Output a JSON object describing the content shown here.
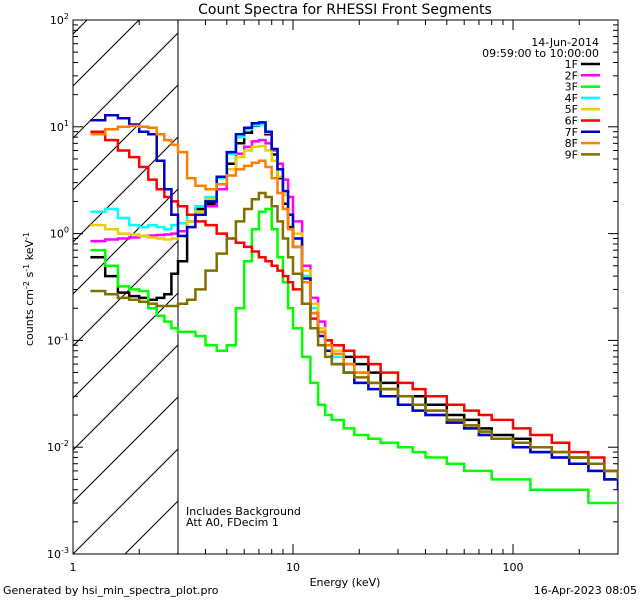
{
  "chart_data": {
    "type": "line",
    "title": "Count Spectra for RHESSI Front Segments",
    "xlabel": "Energy (keV)",
    "ylabel": "counts cm",
    "ylabel_parts": {
      "base": "counts cm",
      "sup1": "-2",
      "mid1": " s",
      "sup2": "-1",
      "mid2": " keV",
      "sup3": "-1"
    },
    "xscale": "log",
    "yscale": "log",
    "xlim": [
      1,
      300
    ],
    "ylim": [
      0.001,
      100
    ],
    "x_tick_labels": [
      "1",
      "10",
      "100"
    ],
    "y_tick_labels": [
      {
        "base": "10",
        "exp": "-3"
      },
      {
        "base": "10",
        "exp": "-2"
      },
      {
        "base": "10",
        "exp": "-1"
      },
      {
        "base": "10",
        "exp": "0"
      },
      {
        "base": "10",
        "exp": "1"
      },
      {
        "base": "10",
        "exp": "2"
      }
    ],
    "date": "14-Jun-2014",
    "time_range": "09:59:00 to 10:00:00",
    "notes": [
      "Includes Background",
      "Att A0, FDecim 1"
    ],
    "attenuated_region_kev": [
      1,
      3
    ],
    "footer_left": "Generated by hsi_min_spectra_plot.pro",
    "footer_right": "16-Apr-2023 08:05",
    "legend_position": "top-right",
    "series": [
      {
        "name": "1F",
        "color": "#000000",
        "x": [
          1.2,
          1.4,
          1.6,
          1.8,
          2.0,
          2.2,
          2.4,
          2.6,
          2.8,
          3.0,
          3.3,
          3.6,
          4.0,
          4.5,
          5.0,
          5.5,
          6.0,
          6.5,
          7.0,
          7.5,
          8.0,
          8.5,
          9.0,
          9.5,
          10,
          11,
          12,
          13,
          14,
          15,
          17,
          19,
          22,
          25,
          30,
          35,
          40,
          50,
          60,
          70,
          80,
          100,
          120,
          150,
          180,
          220,
          260,
          300
        ],
        "y": [
          0.6,
          0.4,
          0.28,
          0.26,
          0.25,
          0.24,
          0.25,
          0.27,
          0.42,
          0.55,
          1.3,
          1.7,
          1.9,
          2.6,
          4.5,
          7.0,
          8.8,
          10.2,
          10.8,
          8.5,
          5.5,
          3.3,
          1.9,
          1.15,
          0.75,
          0.4,
          0.2,
          0.12,
          0.09,
          0.08,
          0.07,
          0.06,
          0.05,
          0.04,
          0.03,
          0.03,
          0.025,
          0.02,
          0.018,
          0.015,
          0.013,
          0.012,
          0.01,
          0.009,
          0.008,
          0.007,
          0.006,
          0.005
        ]
      },
      {
        "name": "2F",
        "color": "#ff00ff",
        "x": [
          1.2,
          1.4,
          1.6,
          1.8,
          2.0,
          2.2,
          2.4,
          2.6,
          2.8,
          3.0,
          3.3,
          3.6,
          4.0,
          4.5,
          5.0,
          5.5,
          6.0,
          6.5,
          7.0,
          7.5,
          8.0,
          8.5,
          9.0,
          9.5,
          10,
          11,
          12,
          13,
          14,
          15,
          17,
          19,
          22,
          25,
          30,
          35,
          40,
          50,
          60,
          70,
          80,
          100,
          120,
          150,
          180,
          220,
          260,
          300
        ],
        "y": [
          0.85,
          0.88,
          0.9,
          0.92,
          0.95,
          0.96,
          0.97,
          0.98,
          1.0,
          1.05,
          1.3,
          1.5,
          1.8,
          2.6,
          4.0,
          5.6,
          6.5,
          7.3,
          7.5,
          7.0,
          6.0,
          4.5,
          3.2,
          2.2,
          1.3,
          0.5,
          0.25,
          0.15,
          0.1,
          0.08,
          0.06,
          0.05,
          0.04,
          0.035,
          0.03,
          0.025,
          0.02,
          0.018,
          0.015,
          0.013,
          0.012,
          0.01,
          0.009,
          0.008,
          0.007,
          0.006,
          0.005,
          0.005
        ]
      },
      {
        "name": "3F",
        "color": "#00ff00",
        "x": [
          1.2,
          1.4,
          1.6,
          1.8,
          2.0,
          2.2,
          2.4,
          2.6,
          2.8,
          3.0,
          3.3,
          3.6,
          4.0,
          4.5,
          5.0,
          5.5,
          6.0,
          6.5,
          7.0,
          7.5,
          8.0,
          8.5,
          9.0,
          9.5,
          10,
          11,
          12,
          13,
          14,
          15,
          17,
          19,
          22,
          25,
          30,
          35,
          40,
          50,
          60,
          70,
          80,
          100,
          120,
          150,
          180,
          220,
          260,
          300
        ],
        "y": [
          0.7,
          0.5,
          0.32,
          0.3,
          0.29,
          0.2,
          0.17,
          0.15,
          0.13,
          0.12,
          0.12,
          0.11,
          0.09,
          0.08,
          0.09,
          0.2,
          0.55,
          1.1,
          1.6,
          1.7,
          1.1,
          0.6,
          0.35,
          0.2,
          0.13,
          0.07,
          0.04,
          0.025,
          0.02,
          0.018,
          0.015,
          0.013,
          0.012,
          0.011,
          0.01,
          0.009,
          0.008,
          0.007,
          0.006,
          0.006,
          0.005,
          0.005,
          0.004,
          0.004,
          0.004,
          0.003,
          0.003,
          0.003
        ]
      },
      {
        "name": "4F",
        "color": "#00ffff",
        "x": [
          1.2,
          1.4,
          1.6,
          1.8,
          2.0,
          2.2,
          2.4,
          2.6,
          2.8,
          3.0,
          3.3,
          3.6,
          4.0,
          4.5,
          5.0,
          5.5,
          6.0,
          6.5,
          7.0,
          7.5,
          8.0,
          8.5,
          9.0,
          9.5,
          10,
          11,
          12,
          13,
          14,
          15,
          17,
          19,
          22,
          25,
          30,
          35,
          40,
          50,
          60,
          70,
          80,
          100,
          120,
          150,
          180,
          220,
          260,
          300
        ],
        "y": [
          1.6,
          1.7,
          1.4,
          1.2,
          1.15,
          1.2,
          1.15,
          1.1,
          1.2,
          1.25,
          1.5,
          1.8,
          2.2,
          3.3,
          5.6,
          8.0,
          9.5,
          10.3,
          10.5,
          8.8,
          6.2,
          4.0,
          2.5,
          1.5,
          0.9,
          0.4,
          0.2,
          0.12,
          0.09,
          0.07,
          0.05,
          0.04,
          0.035,
          0.03,
          0.025,
          0.022,
          0.02,
          0.017,
          0.015,
          0.013,
          0.012,
          0.01,
          0.009,
          0.008,
          0.007,
          0.006,
          0.005,
          0.005
        ]
      },
      {
        "name": "5F",
        "color": "#e6d200",
        "x": [
          1.2,
          1.4,
          1.6,
          1.8,
          2.0,
          2.2,
          2.4,
          2.6,
          2.8,
          3.0,
          3.3,
          3.6,
          4.0,
          4.5,
          5.0,
          5.5,
          6.0,
          6.5,
          7.0,
          7.5,
          8.0,
          8.5,
          9.0,
          9.5,
          10,
          11,
          12,
          13,
          14,
          15,
          17,
          19,
          22,
          25,
          30,
          35,
          40,
          50,
          60,
          70,
          80,
          100,
          120,
          150,
          180,
          220,
          260,
          300
        ],
        "y": [
          1.2,
          1.1,
          1.0,
          0.98,
          0.95,
          0.92,
          0.9,
          0.88,
          0.9,
          0.95,
          1.3,
          1.6,
          2.1,
          2.9,
          4.0,
          5.2,
          6.0,
          6.5,
          6.6,
          6.0,
          4.8,
          3.4,
          2.3,
          1.5,
          1.0,
          0.45,
          0.22,
          0.13,
          0.1,
          0.08,
          0.06,
          0.05,
          0.04,
          0.035,
          0.03,
          0.025,
          0.022,
          0.018,
          0.016,
          0.014,
          0.012,
          0.011,
          0.01,
          0.009,
          0.008,
          0.007,
          0.006,
          0.005
        ]
      },
      {
        "name": "6F",
        "color": "#ff0000",
        "x": [
          1.2,
          1.4,
          1.6,
          1.8,
          2.0,
          2.2,
          2.4,
          2.6,
          2.8,
          3.0,
          3.3,
          3.6,
          4.0,
          4.5,
          5.0,
          5.5,
          6.0,
          6.5,
          7.0,
          7.5,
          8.0,
          8.5,
          9.0,
          9.5,
          10,
          11,
          12,
          13,
          14,
          15,
          17,
          19,
          22,
          25,
          30,
          35,
          40,
          50,
          60,
          70,
          80,
          100,
          120,
          150,
          180,
          220,
          260,
          300
        ],
        "y": [
          9.0,
          7.5,
          6.0,
          5.2,
          4.2,
          3.2,
          2.6,
          2.2,
          2.0,
          1.8,
          1.5,
          1.3,
          1.2,
          1.0,
          0.9,
          0.82,
          0.75,
          0.68,
          0.6,
          0.55,
          0.5,
          0.45,
          0.4,
          0.35,
          0.3,
          0.22,
          0.16,
          0.12,
          0.1,
          0.09,
          0.08,
          0.07,
          0.06,
          0.05,
          0.04,
          0.035,
          0.03,
          0.025,
          0.022,
          0.02,
          0.018,
          0.015,
          0.013,
          0.011,
          0.009,
          0.008,
          0.006,
          0.005
        ]
      },
      {
        "name": "7F",
        "color": "#0000cc",
        "x": [
          1.2,
          1.4,
          1.6,
          1.8,
          2.0,
          2.2,
          2.4,
          2.6,
          2.8,
          3.0,
          3.3,
          3.6,
          4.0,
          4.5,
          5.0,
          5.5,
          6.0,
          6.5,
          7.0,
          7.5,
          8.0,
          8.5,
          9.0,
          9.5,
          10,
          11,
          12,
          13,
          14,
          15,
          17,
          19,
          22,
          25,
          30,
          35,
          40,
          50,
          60,
          70,
          80,
          100,
          120,
          150,
          180,
          220,
          260,
          300
        ],
        "y": [
          11.5,
          12.8,
          12.0,
          10.5,
          9.0,
          8.5,
          4.8,
          2.6,
          1.5,
          0.95,
          1.15,
          1.5,
          2.0,
          3.4,
          5.8,
          8.5,
          9.8,
          10.8,
          11.0,
          9.0,
          6.2,
          4.0,
          2.5,
          1.5,
          0.9,
          0.38,
          0.18,
          0.11,
          0.08,
          0.06,
          0.05,
          0.04,
          0.035,
          0.03,
          0.025,
          0.022,
          0.02,
          0.017,
          0.015,
          0.013,
          0.012,
          0.01,
          0.009,
          0.008,
          0.007,
          0.006,
          0.005,
          0.004
        ]
      },
      {
        "name": "8F",
        "color": "#ff8000",
        "x": [
          1.2,
          1.4,
          1.6,
          1.8,
          2.0,
          2.2,
          2.4,
          2.6,
          2.8,
          3.0,
          3.3,
          3.6,
          4.0,
          4.5,
          5.0,
          5.5,
          6.0,
          6.5,
          7.0,
          7.5,
          8.0,
          8.5,
          9.0,
          9.5,
          10,
          11,
          12,
          13,
          14,
          15,
          17,
          19,
          22,
          25,
          30,
          35,
          40,
          50,
          60,
          70,
          80,
          100,
          120,
          150,
          180,
          220,
          260,
          300
        ],
        "y": [
          8.5,
          9.5,
          10.0,
          10.2,
          10.0,
          9.8,
          8.5,
          7.5,
          6.8,
          5.8,
          3.3,
          2.8,
          2.6,
          2.9,
          3.5,
          4.0,
          4.3,
          4.6,
          4.8,
          4.2,
          3.3,
          2.4,
          1.7,
          1.1,
          0.75,
          0.35,
          0.18,
          0.12,
          0.09,
          0.075,
          0.06,
          0.05,
          0.04,
          0.035,
          0.03,
          0.025,
          0.022,
          0.018,
          0.016,
          0.014,
          0.012,
          0.011,
          0.01,
          0.009,
          0.008,
          0.007,
          0.006,
          0.005
        ]
      },
      {
        "name": "9F",
        "color": "#807000",
        "x": [
          1.2,
          1.4,
          1.6,
          1.8,
          2.0,
          2.2,
          2.4,
          2.6,
          2.8,
          3.0,
          3.3,
          3.6,
          4.0,
          4.5,
          5.0,
          5.5,
          6.0,
          6.5,
          7.0,
          7.5,
          8.0,
          8.5,
          9.0,
          9.5,
          10,
          11,
          12,
          13,
          14,
          15,
          17,
          19,
          22,
          25,
          30,
          35,
          40,
          50,
          60,
          70,
          80,
          100,
          120,
          150,
          180,
          220,
          260,
          300
        ],
        "y": [
          0.29,
          0.27,
          0.25,
          0.24,
          0.23,
          0.22,
          0.21,
          0.21,
          0.21,
          0.22,
          0.24,
          0.3,
          0.45,
          0.65,
          0.9,
          1.3,
          1.7,
          2.1,
          2.4,
          2.2,
          1.8,
          1.3,
          0.9,
          0.6,
          0.42,
          0.22,
          0.13,
          0.09,
          0.07,
          0.06,
          0.05,
          0.045,
          0.04,
          0.035,
          0.03,
          0.025,
          0.022,
          0.018,
          0.016,
          0.014,
          0.012,
          0.011,
          0.01,
          0.009,
          0.008,
          0.007,
          0.006,
          0.005
        ]
      }
    ]
  }
}
